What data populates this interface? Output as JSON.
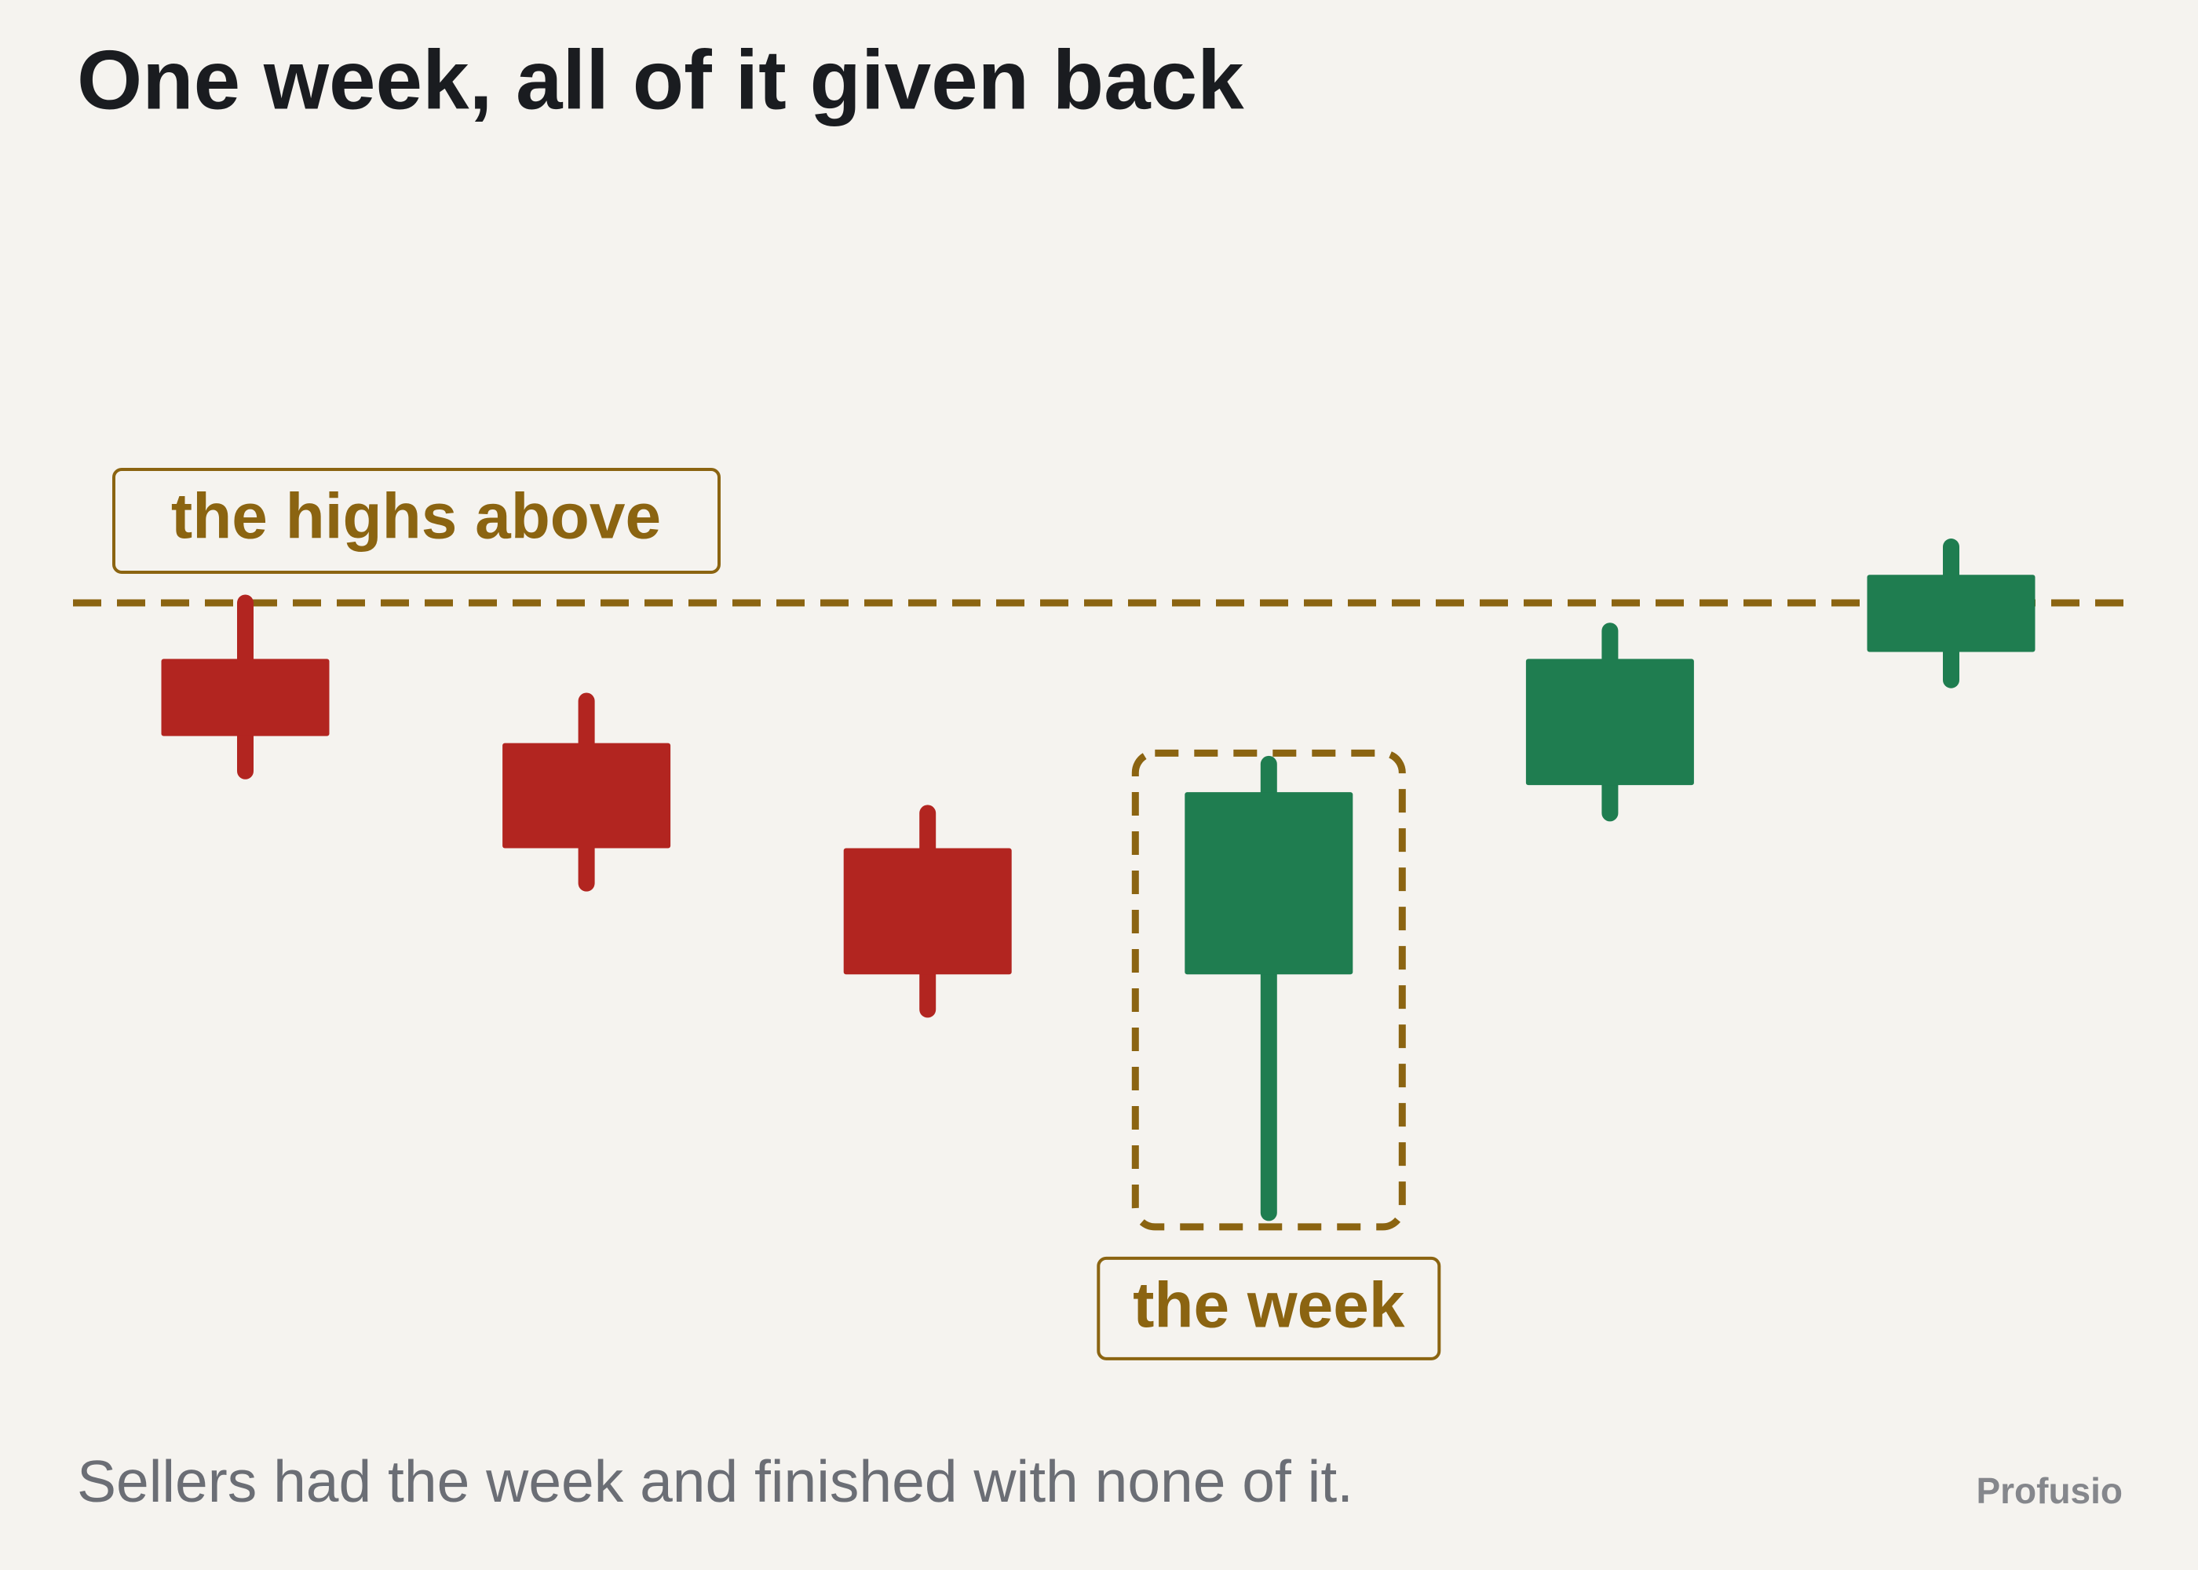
{
  "chart_data": {
    "type": "candlestick",
    "title": "One week, all of it given back",
    "caption": "Sellers had the week and finished with none of it.",
    "source": "Profusio",
    "open": [
      53,
      47,
      39.5,
      30.5,
      44,
      53.5
    ],
    "high": [
      57,
      50,
      42,
      45.5,
      55,
      61
    ],
    "low": [
      45,
      37,
      28,
      13.5,
      42,
      51.5
    ],
    "close": [
      47.5,
      39.5,
      30.5,
      43.5,
      53,
      59
    ],
    "up_color": "#1f7d50",
    "down_color": "#b22520",
    "ylim": [
      0,
      100
    ],
    "reference_line": {
      "value": 57,
      "label": "the highs above",
      "color": "#8b6411"
    },
    "highlight": {
      "index": 3,
      "label": "the week",
      "color": "#8b6411"
    }
  }
}
